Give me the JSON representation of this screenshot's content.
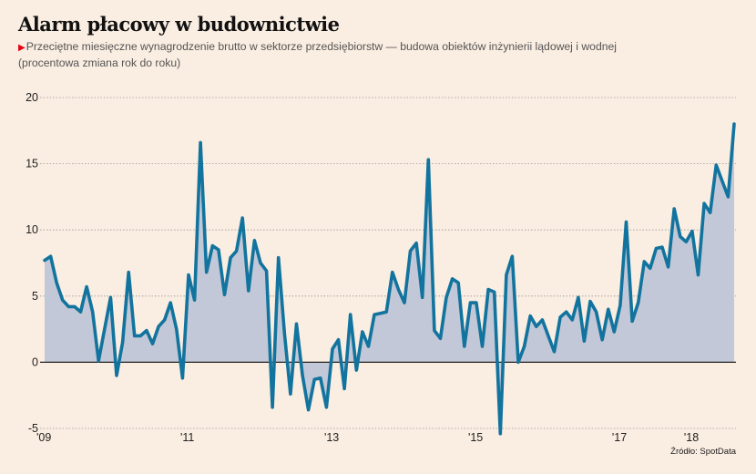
{
  "title": "Alarm płacowy w budownictwie",
  "subtitle_line1": "Przeciętne miesięczne wynagrodzenie brutto w sektorze przedsiębiorstw — budowa obiektów inżynierii lądowej i wodnej",
  "subtitle_line2": "(procentowa zmiana rok do roku)",
  "subtitle_marker_icon": "triangle-right",
  "source": "Źródło: SpotData",
  "colors": {
    "background": "#faede1",
    "line": "#12749e",
    "area": "#c2c8d7",
    "zero_line": "#222222",
    "grid": "#9a9a9a",
    "marker": "#e30613"
  },
  "chart_data": {
    "type": "area",
    "title": "Alarm płacowy w budownictwie",
    "xlabel": "",
    "ylabel": "",
    "ylim": [
      -5,
      20
    ],
    "yticks": [
      20,
      15,
      10,
      5,
      0,
      -5
    ],
    "ytick_labels": [
      "20",
      "15",
      "10",
      "5",
      "0",
      "-5"
    ],
    "xtick_labels": [
      "'09",
      "'11",
      "'13",
      "'15",
      "'17",
      "'18"
    ],
    "xtick_positions_months_from_start": [
      0,
      24,
      48,
      72,
      96,
      108
    ],
    "grid": true,
    "legend": "none",
    "x_start": "2009-01",
    "frequency": "monthly",
    "series": [
      {
        "name": "Przeciętne miesięczne wynagrodzenie brutto — zmiana r/r (%)",
        "values": [
          7.7,
          8.0,
          6.0,
          4.7,
          4.2,
          4.2,
          3.8,
          5.7,
          3.8,
          0.1,
          2.5,
          4.9,
          -1.0,
          1.5,
          6.8,
          2.0,
          2.0,
          2.4,
          1.4,
          2.7,
          3.2,
          4.5,
          2.5,
          -1.2,
          6.6,
          4.7,
          16.6,
          6.8,
          8.8,
          8.5,
          5.1,
          7.9,
          8.4,
          10.9,
          5.4,
          9.2,
          7.5,
          6.9,
          -3.4,
          7.9,
          2.2,
          -2.4,
          2.9,
          -1.0,
          -3.6,
          -1.3,
          -1.2,
          -3.4,
          1.0,
          1.7,
          -2.0,
          3.6,
          -0.6,
          2.3,
          1.2,
          3.6,
          3.7,
          3.8,
          6.8,
          5.5,
          4.5,
          8.4,
          9.0,
          4.9,
          15.3,
          2.4,
          1.8,
          4.9,
          6.3,
          6.0,
          1.2,
          4.5,
          4.5,
          1.2,
          5.5,
          5.3,
          -5.4,
          6.6,
          8.0,
          0.0,
          1.2,
          3.5,
          2.7,
          3.2,
          2.0,
          0.8,
          3.4,
          3.8,
          3.2,
          4.9,
          1.6,
          4.6,
          3.8,
          1.7,
          4.0,
          2.3,
          4.3,
          10.6,
          3.1,
          4.5,
          7.6,
          7.1,
          8.6,
          8.7,
          7.2,
          11.6,
          9.5,
          9.1,
          9.9,
          6.6,
          12.0,
          11.3,
          14.9,
          13.7,
          12.5,
          18.0
        ]
      }
    ]
  }
}
